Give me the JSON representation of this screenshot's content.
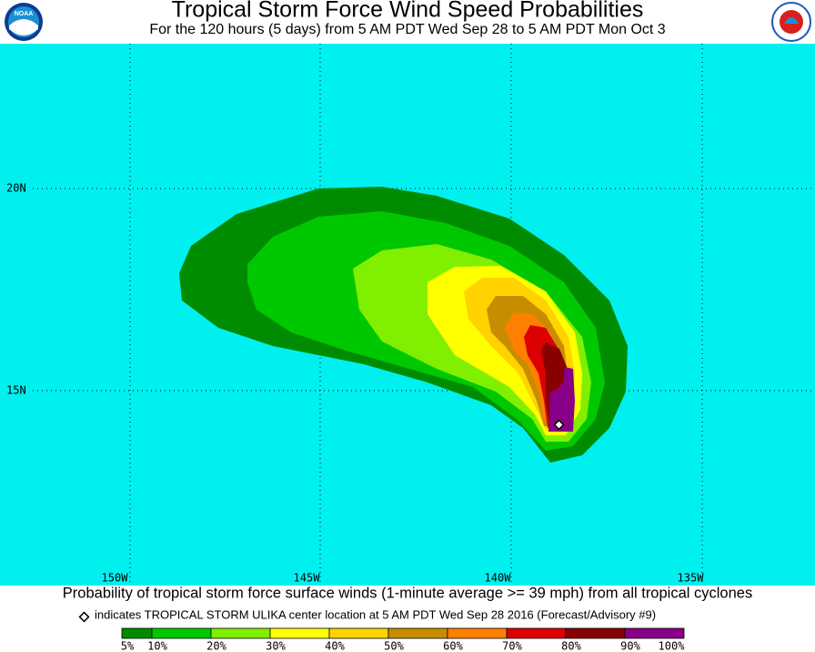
{
  "header": {
    "title": "Tropical Storm Force Wind Speed Probabilities",
    "subtitle": "For the 120 hours (5 days) from 5 AM PDT Wed Sep 28 to 5 AM PDT Mon Oct 3",
    "logo_left": "NOAA"
  },
  "map": {
    "lat_labels": [
      "20N",
      "15N"
    ],
    "lon_labels": [
      "150W",
      "145W",
      "140W",
      "135W"
    ]
  },
  "footer": {
    "caption": "Probability of tropical storm force surface winds (1-minute average >= 39 mph) from all tropical cyclones",
    "note": "indicates TROPICAL STORM ULIKA center location at 5 AM PDT Wed Sep 28 2016 (Forecast/Advisory #9)",
    "legend": {
      "colors": [
        "#008c00",
        "#00c800",
        "#80f000",
        "#ffff00",
        "#ffd200",
        "#c88c00",
        "#ff8000",
        "#dc0000",
        "#880000",
        "#880088"
      ],
      "labels": [
        "5%",
        "10%",
        "20%",
        "30%",
        "40%",
        "50%",
        "60%",
        "70%",
        "80%",
        "90%",
        "100%"
      ]
    }
  }
}
